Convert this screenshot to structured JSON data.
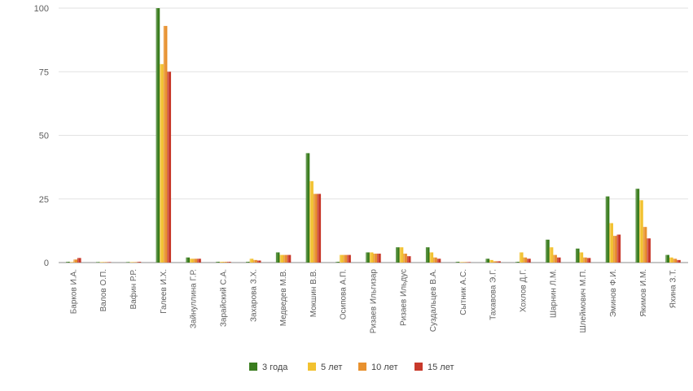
{
  "chart_data": {
    "type": "bar",
    "title": "",
    "xlabel": "",
    "ylabel": "",
    "ylim": [
      0,
      100
    ],
    "yticks": [
      0,
      25,
      50,
      75,
      100
    ],
    "grid": true,
    "legend_position": "bottom",
    "categories": [
      "Барков И.А.",
      "Валов О.П.",
      "Вафин Р.Р.",
      "Галеев И.Х.",
      "Зайнуллина Г.Р.",
      "Зарайский С.А.",
      "Захарова З.Х.",
      "Медведев М.В.",
      "Мокшин В.В.",
      "Осипова А.П.",
      "Ризаев Ильгизар",
      "Ризаев Ильдус",
      "Суздальцев В.А.",
      "Сытник А.С.",
      "Тахавова Э.Г.",
      "Хохлов Д.Г.",
      "Шарнин Л.М.",
      "Шлеймович М.П.",
      "Эминов Ф.И.",
      "Якимов И.М.",
      "Яхина З.Т."
    ],
    "series": [
      {
        "name": "3 года",
        "color": "#3a7d1f",
        "values": [
          0.3,
          0.2,
          0.2,
          100,
          2,
          0.3,
          0.3,
          4,
          43,
          0.3,
          4,
          6,
          6,
          0.3,
          1.5,
          0.3,
          9,
          5.5,
          26,
          29,
          3
        ]
      },
      {
        "name": "5 лет",
        "color": "#f2c230",
        "values": [
          0.2,
          0.2,
          0.1,
          78,
          1.5,
          0.3,
          1.5,
          3,
          32,
          3,
          4,
          6,
          4,
          0.2,
          1,
          4,
          6,
          4,
          15.5,
          24.5,
          2
        ]
      },
      {
        "name": "10 лет",
        "color": "#e8912e",
        "values": [
          1.2,
          0.2,
          0.1,
          93,
          1.5,
          0.3,
          1,
          3,
          27,
          3,
          3.5,
          3.5,
          2,
          0.2,
          0.5,
          2,
          3,
          2,
          10.5,
          14,
          1.5
        ]
      },
      {
        "name": "15 лет",
        "color": "#c8392b",
        "values": [
          1.8,
          0.2,
          0.3,
          75,
          1.5,
          0.3,
          0.8,
          3,
          27,
          3,
          3.5,
          2.5,
          1.5,
          0.2,
          0.5,
          1.5,
          2,
          1.8,
          11,
          9.5,
          1
        ]
      }
    ]
  }
}
